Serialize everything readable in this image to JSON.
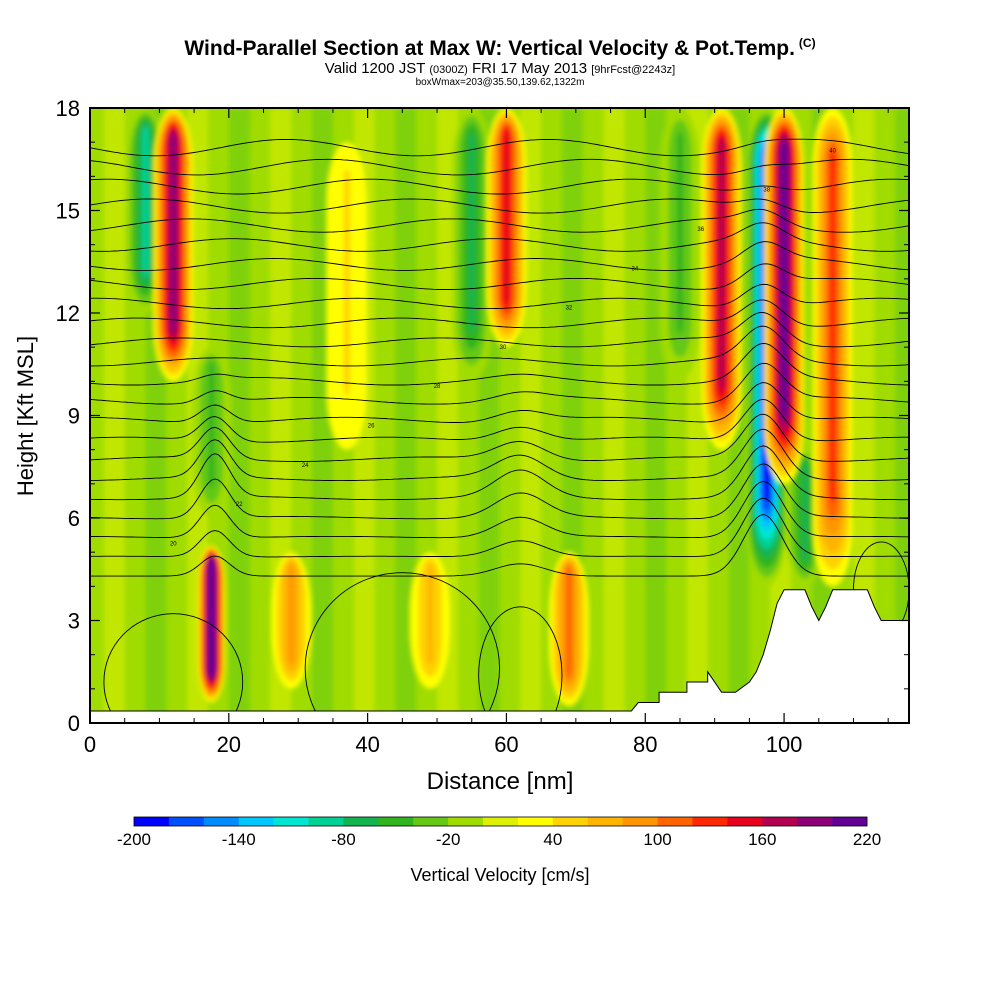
{
  "chart_data": {
    "type": "heatmap",
    "title": "Wind-Parallel Section at Max W: Vertical Velocity & Pot.Temp.",
    "title_mark": "(C)",
    "subtitle_parts": [
      "Valid 1200 JST",
      "(0300Z)",
      "FRI 17 May 2013",
      "[9hrFcst@2243z]"
    ],
    "subtitle2": "boxWmax=203@35.50,139.62,1322m",
    "xlabel": "Distance [nm]",
    "ylabel": "Height [Kft MSL]",
    "xlim": [
      0,
      118
    ],
    "ylim": [
      0,
      18
    ],
    "x_ticks": [
      "0",
      "20",
      "40",
      "60",
      "80",
      "100"
    ],
    "y_ticks": [
      "0",
      "3",
      "6",
      "9",
      "12",
      "15",
      "18"
    ],
    "x_tick_values": [
      0,
      20,
      40,
      60,
      80,
      100
    ],
    "y_tick_values": [
      0,
      3,
      6,
      9,
      12,
      15,
      18
    ],
    "colorbar": {
      "label": "Vertical Velocity [cm/s]",
      "min": -200,
      "max": 220,
      "step": 20,
      "tick_labels": [
        "-200",
        "-140",
        "-80",
        "-20",
        "40",
        "100",
        "160",
        "220"
      ],
      "tick_values": [
        -200,
        -140,
        -80,
        -20,
        40,
        100,
        160,
        220
      ],
      "colors": [
        "#0000ff",
        "#0050ff",
        "#008cff",
        "#00c8ff",
        "#00e6d2",
        "#00d296",
        "#14b450",
        "#32b41e",
        "#64c814",
        "#a0dc00",
        "#dcf000",
        "#ffff00",
        "#ffd200",
        "#ffb400",
        "#ff9600",
        "#ff6400",
        "#ff2800",
        "#e6001e",
        "#b40050",
        "#8c0078",
        "#640096"
      ]
    },
    "updrafts": [
      {
        "x": 12,
        "w": 180,
        "z0": 10,
        "z1": 18
      },
      {
        "x": 17.5,
        "w": 215,
        "z0": 0.6,
        "z1": 5.2
      },
      {
        "x": 29,
        "w": 70,
        "z0": 1,
        "z1": 5
      },
      {
        "x": 37,
        "w": 40,
        "z0": 8,
        "z1": 17
      },
      {
        "x": 49,
        "w": 60,
        "z0": 1,
        "z1": 5
      },
      {
        "x": 60,
        "w": 140,
        "z0": 11,
        "z1": 18
      },
      {
        "x": 69,
        "w": 90,
        "z0": 0.5,
        "z1": 5
      },
      {
        "x": 91,
        "w": 150,
        "z0": 8,
        "z1": 18
      },
      {
        "x": 100,
        "w": 205,
        "z0": 7,
        "z1": 18
      },
      {
        "x": 107,
        "w": 110,
        "z0": 4,
        "z1": 18
      }
    ],
    "downdrafts": [
      {
        "x": 8,
        "w": -90,
        "z0": 12,
        "z1": 18
      },
      {
        "x": 17.5,
        "w": -60,
        "z0": 6,
        "z1": 11
      },
      {
        "x": 55,
        "w": -70,
        "z0": 10,
        "z1": 18
      },
      {
        "x": 85,
        "w": -60,
        "z0": 10,
        "z1": 18
      },
      {
        "x": 97.5,
        "w": -200,
        "z0": 4,
        "z1": 18
      },
      {
        "x": 103,
        "w": -80,
        "z0": 4,
        "z1": 8
      }
    ],
    "isentropes": {
      "levels": [
        296,
        298,
        300,
        302,
        304,
        306,
        308,
        310,
        312,
        314,
        316,
        318,
        320,
        322,
        324,
        326,
        328,
        330,
        332,
        334,
        336,
        338,
        340
      ],
      "labels": [
        "20",
        "22",
        "24",
        "26",
        "28",
        "30",
        "32",
        "34",
        "36",
        "38",
        "40"
      ]
    },
    "terrain": [
      {
        "x": 0,
        "h": 0.35
      },
      {
        "x": 78,
        "h": 0.35
      },
      {
        "x": 79,
        "h": 0.6
      },
      {
        "x": 82,
        "h": 0.6
      },
      {
        "x": 82,
        "h": 0.9
      },
      {
        "x": 86,
        "h": 0.9
      },
      {
        "x": 86,
        "h": 1.2
      },
      {
        "x": 89,
        "h": 1.2
      },
      {
        "x": 89,
        "h": 1.5
      },
      {
        "x": 91,
        "h": 0.9
      },
      {
        "x": 93,
        "h": 0.9
      },
      {
        "x": 95,
        "h": 1.2
      },
      {
        "x": 96,
        "h": 1.5
      },
      {
        "x": 97,
        "h": 2
      },
      {
        "x": 98,
        "h": 2.7
      },
      {
        "x": 99,
        "h": 3.5
      },
      {
        "x": 100,
        "h": 3.9
      },
      {
        "x": 103,
        "h": 3.9
      },
      {
        "x": 104,
        "h": 3.4
      },
      {
        "x": 105,
        "h": 3.0
      },
      {
        "x": 106,
        "h": 3.4
      },
      {
        "x": 107,
        "h": 3.9
      },
      {
        "x": 112,
        "h": 3.9
      },
      {
        "x": 113,
        "h": 3.4
      },
      {
        "x": 114,
        "h": 3.0
      },
      {
        "x": 118,
        "h": 3.0
      }
    ]
  }
}
